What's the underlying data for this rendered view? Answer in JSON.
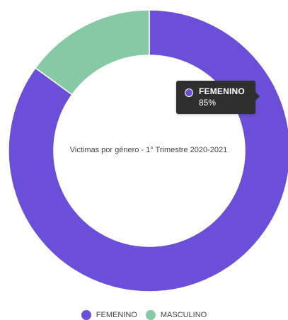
{
  "chart_data": {
    "type": "pie",
    "style": "donut",
    "title": "Victimas por género - 1° Trimestre 2020-2021",
    "categories": [
      "FEMENINO",
      "MASCULINO"
    ],
    "values": [
      85,
      15
    ],
    "unit": "%",
    "colors": [
      "#6b4fd8",
      "#87c9a4"
    ],
    "legend_placement": "bottom",
    "legend": [
      "FEMENINO",
      "MASCULINO"
    ]
  },
  "tooltip": {
    "label": "FEMENINO",
    "value": "85%",
    "color": "#6b4fd8"
  }
}
